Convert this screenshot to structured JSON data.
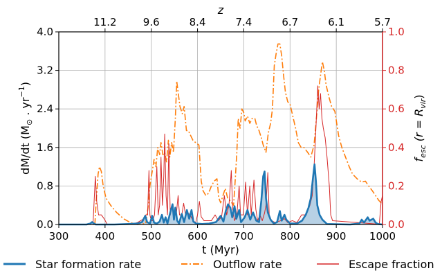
{
  "chart_data": {
    "type": "line",
    "x_axis": {
      "label": "t (Myr)",
      "range": [
        300,
        1000
      ],
      "ticks": [
        300,
        400,
        500,
        600,
        700,
        800,
        900,
        1000
      ],
      "tick_labels": [
        "300",
        "400",
        "500",
        "600",
        "700",
        "800",
        "900",
        "1000"
      ]
    },
    "top_axis": {
      "label": "z",
      "tick_labels": [
        "11.2",
        "9.6",
        "8.4",
        "7.4",
        "6.7",
        "6.1",
        "5.7"
      ],
      "tick_x_positions_myr": [
        400,
        500,
        600,
        700,
        800,
        900,
        1000
      ]
    },
    "y_left": {
      "label_parts": [
        "dM/dt (M",
        "⊙",
        " . yr",
        "−1",
        ")"
      ],
      "range": [
        0,
        4.0
      ],
      "ticks": [
        0,
        0.8,
        1.6,
        2.4,
        3.2,
        4.0
      ],
      "tick_labels": [
        "0.0",
        "0.8",
        "1.6",
        "2.4",
        "3.2",
        "4.0"
      ]
    },
    "y_right": {
      "label_parts": [
        "f",
        "esc",
        " (r = R",
        "vir",
        ")"
      ],
      "range": [
        0,
        1.0
      ],
      "ticks": [
        0,
        0.2,
        0.4,
        0.6,
        0.8,
        1.0
      ],
      "tick_labels": [
        "0.0",
        "0.2",
        "0.4",
        "0.6",
        "0.8",
        "1.0"
      ],
      "color": "#d62728"
    },
    "grid": true,
    "legend_position": "bottom",
    "series": [
      {
        "name": "Star formation rate",
        "axis": "left",
        "color": "#1f77b4",
        "fill": "#aac9e0",
        "style": "solid",
        "points": [
          [
            300,
            0
          ],
          [
            360,
            0
          ],
          [
            368,
            0.02
          ],
          [
            372,
            0.05
          ],
          [
            376,
            0.02
          ],
          [
            380,
            0
          ],
          [
            420,
            0
          ],
          [
            450,
            0.01
          ],
          [
            470,
            0.02
          ],
          [
            480,
            0.05
          ],
          [
            487,
            0.18
          ],
          [
            491,
            0.05
          ],
          [
            497,
            0.02
          ],
          [
            502,
            0.18
          ],
          [
            506,
            0.04
          ],
          [
            512,
            0.02
          ],
          [
            518,
            0.06
          ],
          [
            523,
            0.2
          ],
          [
            527,
            0.04
          ],
          [
            531,
            0.15
          ],
          [
            535,
            0.02
          ],
          [
            541,
            0.25
          ],
          [
            546,
            0.42
          ],
          [
            549,
            0.1
          ],
          [
            552,
            0.35
          ],
          [
            556,
            0.08
          ],
          [
            560,
            0.02
          ],
          [
            566,
            0.22
          ],
          [
            571,
            0.05
          ],
          [
            577,
            0.3
          ],
          [
            582,
            0.12
          ],
          [
            587,
            0.3
          ],
          [
            591,
            0.06
          ],
          [
            597,
            0.02
          ],
          [
            610,
            0.01
          ],
          [
            625,
            0.02
          ],
          [
            640,
            0.05
          ],
          [
            650,
            0.18
          ],
          [
            656,
            0.06
          ],
          [
            661,
            0.28
          ],
          [
            666,
            0.42
          ],
          [
            671,
            0.35
          ],
          [
            675,
            0.15
          ],
          [
            680,
            0.38
          ],
          [
            684,
            0.12
          ],
          [
            690,
            0.3
          ],
          [
            694,
            0.05
          ],
          [
            702,
            0.15
          ],
          [
            708,
            0.3
          ],
          [
            714,
            0.1
          ],
          [
            720,
            0.25
          ],
          [
            727,
            0.08
          ],
          [
            733,
            0.05
          ],
          [
            738,
            0.5
          ],
          [
            742,
            1.0
          ],
          [
            745,
            1.1
          ],
          [
            748,
            0.55
          ],
          [
            752,
            0.25
          ],
          [
            758,
            0.1
          ],
          [
            765,
            0.02
          ],
          [
            772,
            0.05
          ],
          [
            778,
            0.28
          ],
          [
            782,
            0.08
          ],
          [
            788,
            0.2
          ],
          [
            792,
            0.1
          ],
          [
            800,
            0.02
          ],
          [
            815,
            0.02
          ],
          [
            826,
            0.08
          ],
          [
            834,
            0.2
          ],
          [
            840,
            0.35
          ],
          [
            845,
            0.55
          ],
          [
            850,
            1.0
          ],
          [
            853,
            1.25
          ],
          [
            856,
            0.9
          ],
          [
            859,
            0.4
          ],
          [
            864,
            0.2
          ],
          [
            870,
            0.1
          ],
          [
            880,
            0.01
          ],
          [
            930,
            0
          ],
          [
            950,
            0.02
          ],
          [
            955,
            0.1
          ],
          [
            960,
            0.04
          ],
          [
            968,
            0.15
          ],
          [
            972,
            0.08
          ],
          [
            980,
            0.12
          ],
          [
            985,
            0.04
          ],
          [
            990,
            0.01
          ],
          [
            1000,
            0
          ]
        ]
      },
      {
        "name": "Outflow rate",
        "axis": "left",
        "color": "#ff7f0e",
        "style": "dashdot",
        "points": [
          [
            378,
            0
          ],
          [
            381,
            0.5
          ],
          [
            385,
            1.05
          ],
          [
            388,
            1.2
          ],
          [
            392,
            1.1
          ],
          [
            396,
            0.8
          ],
          [
            402,
            0.55
          ],
          [
            412,
            0.4
          ],
          [
            425,
            0.25
          ],
          [
            440,
            0.12
          ],
          [
            455,
            0.04
          ],
          [
            470,
            0
          ],
          [
            488,
            0.02
          ],
          [
            493,
            0.35
          ],
          [
            497,
            0.8
          ],
          [
            502,
            1.1
          ],
          [
            506,
            1.35
          ],
          [
            510,
            1.2
          ],
          [
            514,
            1.6
          ],
          [
            518,
            1.45
          ],
          [
            521,
            1.7
          ],
          [
            525,
            1.45
          ],
          [
            529,
            1.5
          ],
          [
            533,
            1.3
          ],
          [
            537,
            1.75
          ],
          [
            540,
            1.4
          ],
          [
            544,
            1.7
          ],
          [
            548,
            1.5
          ],
          [
            552,
            2.2
          ],
          [
            555,
            2.98
          ],
          [
            558,
            2.75
          ],
          [
            562,
            2.45
          ],
          [
            567,
            2.3
          ],
          [
            571,
            2.45
          ],
          [
            576,
            1.95
          ],
          [
            580,
            1.95
          ],
          [
            585,
            1.85
          ],
          [
            590,
            1.75
          ],
          [
            596,
            1.7
          ],
          [
            603,
            1.65
          ],
          [
            608,
            0.9
          ],
          [
            612,
            0.7
          ],
          [
            618,
            0.6
          ],
          [
            624,
            0.65
          ],
          [
            630,
            0.8
          ],
          [
            636,
            0.9
          ],
          [
            642,
            0.95
          ],
          [
            646,
            0.55
          ],
          [
            650,
            0.45
          ],
          [
            655,
            0.6
          ],
          [
            660,
            0.75
          ],
          [
            665,
            0.55
          ],
          [
            670,
            0.5
          ],
          [
            678,
            0.4
          ],
          [
            682,
            1.0
          ],
          [
            685,
            1.5
          ],
          [
            688,
            2.2
          ],
          [
            692,
            2.0
          ],
          [
            696,
            2.4
          ],
          [
            700,
            2.32
          ],
          [
            703,
            2.15
          ],
          [
            708,
            2.25
          ],
          [
            713,
            2.1
          ],
          [
            718,
            2.2
          ],
          [
            724,
            2.2
          ],
          [
            728,
            2.05
          ],
          [
            733,
            1.95
          ],
          [
            738,
            1.8
          ],
          [
            742,
            1.65
          ],
          [
            748,
            1.5
          ],
          [
            753,
            1.9
          ],
          [
            758,
            2.1
          ],
          [
            762,
            2.4
          ],
          [
            766,
            3.3
          ],
          [
            770,
            3.55
          ],
          [
            774,
            3.75
          ],
          [
            778,
            3.75
          ],
          [
            782,
            3.5
          ],
          [
            786,
            3.1
          ],
          [
            790,
            2.75
          ],
          [
            795,
            2.55
          ],
          [
            800,
            2.5
          ],
          [
            806,
            2.25
          ],
          [
            812,
            2.0
          ],
          [
            818,
            1.7
          ],
          [
            824,
            1.6
          ],
          [
            830,
            1.6
          ],
          [
            838,
            1.5
          ],
          [
            845,
            1.4
          ],
          [
            852,
            1.65
          ],
          [
            857,
            2.2
          ],
          [
            862,
            2.8
          ],
          [
            866,
            3.1
          ],
          [
            870,
            3.38
          ],
          [
            874,
            3.2
          ],
          [
            878,
            2.9
          ],
          [
            884,
            2.65
          ],
          [
            890,
            2.45
          ],
          [
            897,
            2.35
          ],
          [
            905,
            1.85
          ],
          [
            912,
            1.6
          ],
          [
            920,
            1.4
          ],
          [
            928,
            1.2
          ],
          [
            935,
            1.05
          ],
          [
            945,
            0.95
          ],
          [
            955,
            0.88
          ],
          [
            963,
            0.9
          ],
          [
            970,
            0.8
          ],
          [
            978,
            0.7
          ],
          [
            985,
            0.6
          ],
          [
            992,
            0.5
          ],
          [
            1000,
            0.42
          ]
        ]
      },
      {
        "name": "Escape fraction",
        "axis": "right",
        "color": "#d62728",
        "style": "solid",
        "points": [
          [
            300,
            0
          ],
          [
            374,
            0
          ],
          [
            376,
            0.1
          ],
          [
            379,
            0.25
          ],
          [
            382,
            0.12
          ],
          [
            386,
            0.05
          ],
          [
            392,
            0.05
          ],
          [
            398,
            0.03
          ],
          [
            405,
            0
          ],
          [
            455,
            0
          ],
          [
            470,
            0.01
          ],
          [
            484,
            0.03
          ],
          [
            488,
            0.05
          ],
          [
            492,
            0.05
          ],
          [
            495,
            0.28
          ],
          [
            497,
            0.05
          ],
          [
            500,
            0.02
          ],
          [
            503,
            0.02
          ],
          [
            507,
            0.05
          ],
          [
            512,
            0.3
          ],
          [
            515,
            0.05
          ],
          [
            518,
            0.1
          ],
          [
            521,
            0.35
          ],
          [
            524,
            0.1
          ],
          [
            527,
            0.25
          ],
          [
            529,
            0.47
          ],
          [
            532,
            0.15
          ],
          [
            535,
            0.05
          ],
          [
            538,
            0.42
          ],
          [
            541,
            0.05
          ],
          [
            546,
            0.1
          ],
          [
            550,
            0.05
          ],
          [
            554,
            0.05
          ],
          [
            558,
            0.15
          ],
          [
            561,
            0.05
          ],
          [
            566,
            0.05
          ],
          [
            570,
            0.11
          ],
          [
            574,
            0.05
          ],
          [
            579,
            0.06
          ],
          [
            584,
            0.05
          ],
          [
            590,
            0.02
          ],
          [
            596,
            0.01
          ],
          [
            600,
            0.05
          ],
          [
            604,
            0.12
          ],
          [
            608,
            0.04
          ],
          [
            614,
            0.02
          ],
          [
            622,
            0.02
          ],
          [
            630,
            0.02
          ],
          [
            638,
            0.05
          ],
          [
            645,
            0.02
          ],
          [
            652,
            0.04
          ],
          [
            658,
            0.15
          ],
          [
            663,
            0.05
          ],
          [
            668,
            0.1
          ],
          [
            673,
            0.28
          ],
          [
            676,
            0.08
          ],
          [
            680,
            0.02
          ],
          [
            685,
            0.05
          ],
          [
            690,
            0.2
          ],
          [
            693,
            0.05
          ],
          [
            699,
            0.05
          ],
          [
            704,
            0.22
          ],
          [
            708,
            0.05
          ],
          [
            713,
            0.2
          ],
          [
            716,
            0.05
          ],
          [
            722,
            0.23
          ],
          [
            726,
            0.08
          ],
          [
            730,
            0.02
          ],
          [
            735,
            0.05
          ],
          [
            740,
            0.02
          ],
          [
            745,
            0.06
          ],
          [
            748,
            0.1
          ],
          [
            752,
            0.27
          ],
          [
            755,
            0.05
          ],
          [
            760,
            0.02
          ],
          [
            768,
            0.01
          ],
          [
            780,
            0.02
          ],
          [
            788,
            0.03
          ],
          [
            795,
            0.01
          ],
          [
            805,
            0.02
          ],
          [
            815,
            0.01
          ],
          [
            825,
            0.05
          ],
          [
            835,
            0.05
          ],
          [
            843,
            0.1
          ],
          [
            848,
            0.15
          ],
          [
            852,
            0.3
          ],
          [
            856,
            0.5
          ],
          [
            860,
            0.72
          ],
          [
            863,
            0.6
          ],
          [
            866,
            0.68
          ],
          [
            869,
            0.55
          ],
          [
            872,
            0.5
          ],
          [
            876,
            0.45
          ],
          [
            880,
            0.35
          ],
          [
            885,
            0.2
          ],
          [
            888,
            0.05
          ],
          [
            892,
            0.02
          ],
          [
            1000,
            0
          ],
          [
            1000,
            0.15
          ],
          [
            997,
            0.12
          ],
          [
            993,
            0
          ]
        ]
      }
    ]
  }
}
